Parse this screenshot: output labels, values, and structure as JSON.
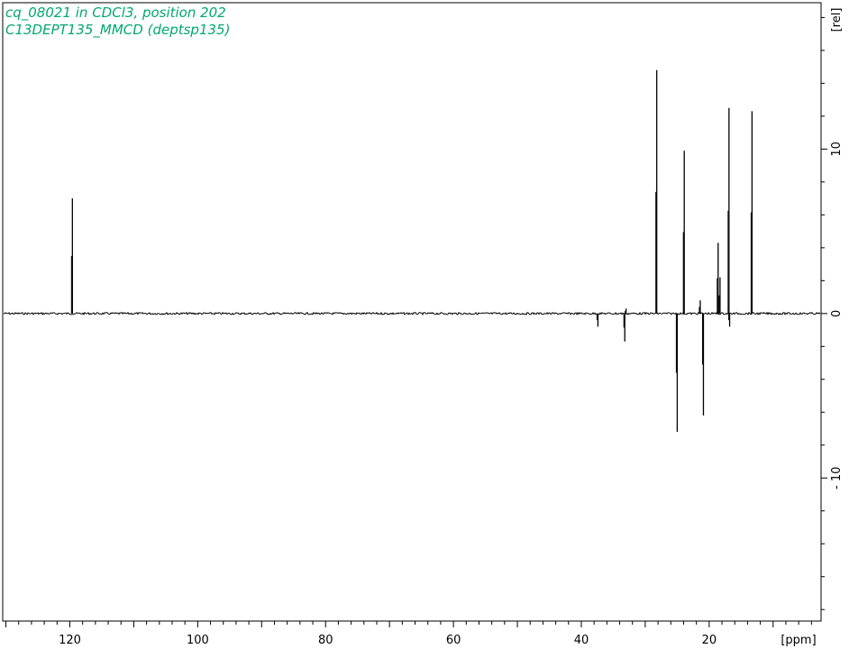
{
  "header": {
    "title_line1": "cq_08021 in CDCl3, position 202",
    "title_line2": "C13DEPT135_MMCD (deptsp135)"
  },
  "colors": {
    "title": "#00a870",
    "spectrum": "#000000",
    "axis": "#000000",
    "background": "#ffffff"
  },
  "chart_data": {
    "type": "line",
    "title": "cq_08021 in CDCl3, position 202",
    "subtitle": "C13DEPT135_MMCD (deptsp135)",
    "xlabel": "[ppm]",
    "ylabel": "[rel]",
    "xlim": [
      130.5,
      2.5
    ],
    "ylim": [
      -18.7,
      18.9
    ],
    "x_ticks": [
      120,
      100,
      80,
      60,
      40,
      20
    ],
    "y_ticks": [
      10,
      0,
      -10
    ],
    "x_axis_reversed": true,
    "grid": false,
    "legend": "none",
    "baseline": 0,
    "peaks": [
      {
        "ppm": 119.6,
        "intensity": 7.0
      },
      {
        "ppm": 37.4,
        "intensity": -0.8
      },
      {
        "ppm": 33.2,
        "intensity": -1.7
      },
      {
        "ppm": 33.0,
        "intensity": 0.3
      },
      {
        "ppm": 28.2,
        "intensity": 14.8
      },
      {
        "ppm": 25.0,
        "intensity": -7.2
      },
      {
        "ppm": 23.9,
        "intensity": 9.9
      },
      {
        "ppm": 21.4,
        "intensity": 0.8
      },
      {
        "ppm": 20.9,
        "intensity": -6.2
      },
      {
        "ppm": 18.6,
        "intensity": 4.3
      },
      {
        "ppm": 18.3,
        "intensity": 2.2
      },
      {
        "ppm": 16.9,
        "intensity": 12.5
      },
      {
        "ppm": 16.8,
        "intensity": -0.8
      },
      {
        "ppm": 13.3,
        "intensity": 12.3
      }
    ]
  }
}
